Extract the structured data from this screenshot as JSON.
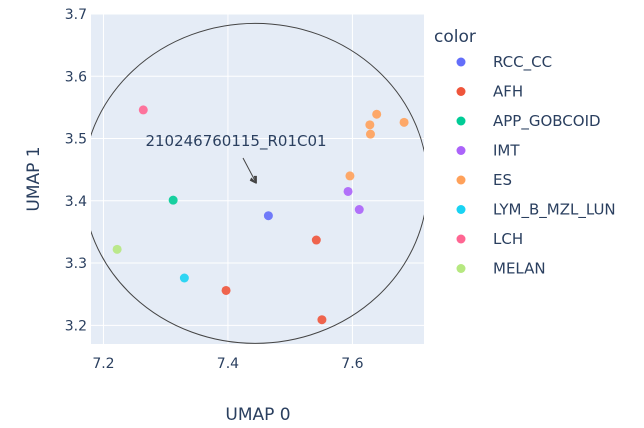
{
  "chart_data": {
    "type": "scatter",
    "title": "",
    "xlabel": "UMAP 0",
    "ylabel": "UMAP 1",
    "xlim": [
      7.18,
      7.715
    ],
    "ylim": [
      3.17,
      3.7
    ],
    "xticks": [
      7.2,
      7.4,
      7.6
    ],
    "yticks": [
      3.2,
      3.3,
      3.4,
      3.5,
      3.6,
      3.7
    ],
    "grid": true,
    "legend": {
      "title": "color",
      "placement": "right"
    },
    "series": [
      {
        "name": "RCC_CC",
        "color": "#636efa",
        "points": [
          [
            7.465,
            3.376
          ]
        ]
      },
      {
        "name": "AFH",
        "color": "#EF553B",
        "points": [
          [
            7.397,
            3.256
          ],
          [
            7.542,
            3.337
          ],
          [
            7.551,
            3.209
          ]
        ]
      },
      {
        "name": "APP_GOBCOID",
        "color": "#00cc96",
        "points": [
          [
            7.312,
            3.401
          ]
        ]
      },
      {
        "name": "IMT",
        "color": "#ab63fa",
        "points": [
          [
            7.593,
            3.415
          ],
          [
            7.611,
            3.386
          ]
        ]
      },
      {
        "name": "ES",
        "color": "#FFA15A",
        "points": [
          [
            7.596,
            3.44
          ],
          [
            7.628,
            3.522
          ],
          [
            7.629,
            3.507
          ],
          [
            7.639,
            3.539
          ],
          [
            7.683,
            3.526
          ]
        ]
      },
      {
        "name": "LYM_B_MZL_LUN",
        "color": "#19d3f3",
        "points": [
          [
            7.33,
            3.276
          ]
        ]
      },
      {
        "name": "LCH",
        "color": "#FF6692",
        "points": [
          [
            7.264,
            3.546
          ]
        ]
      },
      {
        "name": "MELAN",
        "color": "#B6E880",
        "points": [
          [
            7.222,
            3.322
          ]
        ]
      }
    ],
    "annotations": [
      {
        "text": "210246760115_R01C01",
        "x": 7.465,
        "y": 3.42
      }
    ],
    "shapes": [
      {
        "type": "circle",
        "cx": 7.444,
        "cy": 3.428,
        "rx": 0.277,
        "ry": 0.257
      }
    ]
  }
}
